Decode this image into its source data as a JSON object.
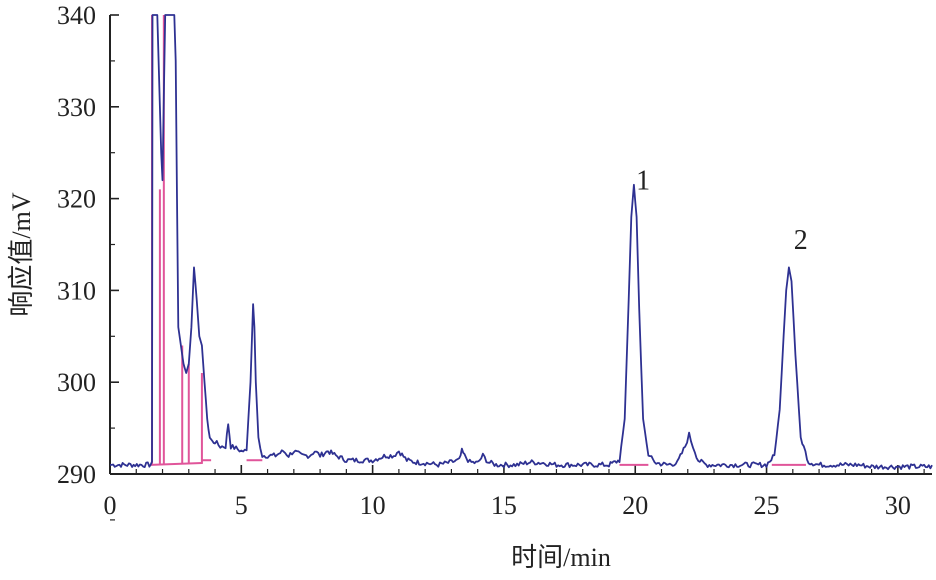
{
  "chart_data": {
    "type": "line",
    "xlabel": "时间/min",
    "ylabel": "响应值/mV",
    "xlim": [
      0,
      31.3
    ],
    "ylim": [
      290,
      340
    ],
    "grid": false,
    "x_ticks": [
      0,
      5,
      10,
      15,
      20,
      25,
      30
    ],
    "y_ticks": [
      290,
      300,
      310,
      320,
      330,
      340
    ],
    "colors": {
      "signal": "#2e3192",
      "baseline": "#e0559a",
      "axis": "#222222"
    },
    "series": [
      {
        "line_role": "detector-signal",
        "x": [
          0,
          1.5,
          1.6,
          1.62,
          1.7,
          1.8,
          1.9,
          1.95,
          2.0,
          2.1,
          2.2,
          2.3,
          2.45,
          2.5,
          2.55,
          2.6,
          2.7,
          2.8,
          2.9,
          3.0,
          3.1,
          3.2,
          3.3,
          3.4,
          3.5,
          3.6,
          3.7,
          3.8,
          3.9,
          4.0,
          4.2,
          4.4,
          4.5,
          4.6,
          4.8,
          5.0,
          5.2,
          5.35,
          5.45,
          5.5,
          5.55,
          5.65,
          5.8,
          6.0,
          6.3,
          6.6,
          6.8,
          7.0,
          7.3,
          7.6,
          7.8,
          8.0,
          8.3,
          8.6,
          9.0,
          9.5,
          10.0,
          10.5,
          10.8,
          11.0,
          11.3,
          11.6,
          12.0,
          12.5,
          13.0,
          13.3,
          13.4,
          13.5,
          13.7,
          14.0,
          14.2,
          14.4,
          14.7,
          15.0,
          15.5,
          16.0,
          16.5,
          17.0,
          17.5,
          18.0,
          18.5,
          19.0,
          19.4,
          19.6,
          19.75,
          19.85,
          19.95,
          20.05,
          20.15,
          20.3,
          20.5,
          20.8,
          21.2,
          21.6,
          21.9,
          22.05,
          22.2,
          22.4,
          22.7,
          23.0,
          23.5,
          24.0,
          24.5,
          25.0,
          25.3,
          25.5,
          25.65,
          25.75,
          25.85,
          25.95,
          26.1,
          26.3,
          26.6,
          27.0,
          27.5,
          28.0,
          28.5,
          29.0,
          29.5,
          30.0,
          30.5,
          31.0,
          31.3
        ],
        "y": [
          291.0,
          291.0,
          291.1,
          340,
          340,
          340,
          330,
          325,
          322,
          340,
          340,
          340,
          340,
          335,
          320,
          306,
          304,
          302,
          301,
          302,
          306,
          312.5,
          309,
          305,
          304,
          300,
          296,
          294,
          293.5,
          293.5,
          293.0,
          293.0,
          295.5,
          293.0,
          292.8,
          292.5,
          292.5,
          300,
          308.5,
          306,
          300,
          294,
          292.0,
          292.0,
          292.0,
          292.5,
          292.0,
          292.5,
          292.0,
          292.0,
          292.5,
          292.0,
          292.5,
          292.0,
          291.5,
          291.5,
          291.5,
          292.0,
          292.0,
          292.5,
          291.5,
          291.3,
          291.2,
          291.0,
          291.3,
          291.5,
          292.5,
          292.0,
          291.3,
          291.2,
          292.0,
          291.3,
          291.0,
          291.0,
          291.0,
          291.3,
          291.2,
          291.0,
          291.0,
          291.0,
          291.0,
          291.0,
          291.5,
          296,
          309,
          318,
          321.5,
          318,
          308,
          296,
          292,
          291.2,
          291.0,
          291.2,
          293,
          294.3,
          293,
          291.5,
          291.0,
          291.0,
          291.0,
          291.0,
          291.0,
          291.0,
          292,
          297,
          305,
          310,
          312.5,
          311,
          303,
          294,
          291.3,
          291.0,
          291.0,
          291.0,
          291.0,
          290.8,
          290.8,
          290.8,
          290.8,
          290.8,
          290.8
        ]
      },
      {
        "line_role": "integration-baseline",
        "x": [
          1.55,
          3.5,
          3.5,
          3.85,
          3.85,
          5.2,
          5.2,
          5.8,
          19.4,
          20.5,
          25.2,
          26.5
        ],
        "y": [
          291.0,
          291.2,
          291.5,
          291.5,
          292.5,
          292.5,
          291.5,
          291.5,
          291.0,
          291.0,
          291.0,
          291.0
        ]
      }
    ],
    "baseline_drops": [
      {
        "x": 1.6,
        "y": 340
      },
      {
        "x": 1.9,
        "y": 321
      },
      {
        "x": 2.05,
        "y": 340
      },
      {
        "x": 2.75,
        "y": 304
      },
      {
        "x": 3.0,
        "y": 302
      },
      {
        "x": 3.5,
        "y": 301
      }
    ],
    "annotations": [
      {
        "text": "1",
        "x": 20.3,
        "y": 321
      },
      {
        "text": "2",
        "x": 26.3,
        "y": 314.5
      }
    ]
  }
}
